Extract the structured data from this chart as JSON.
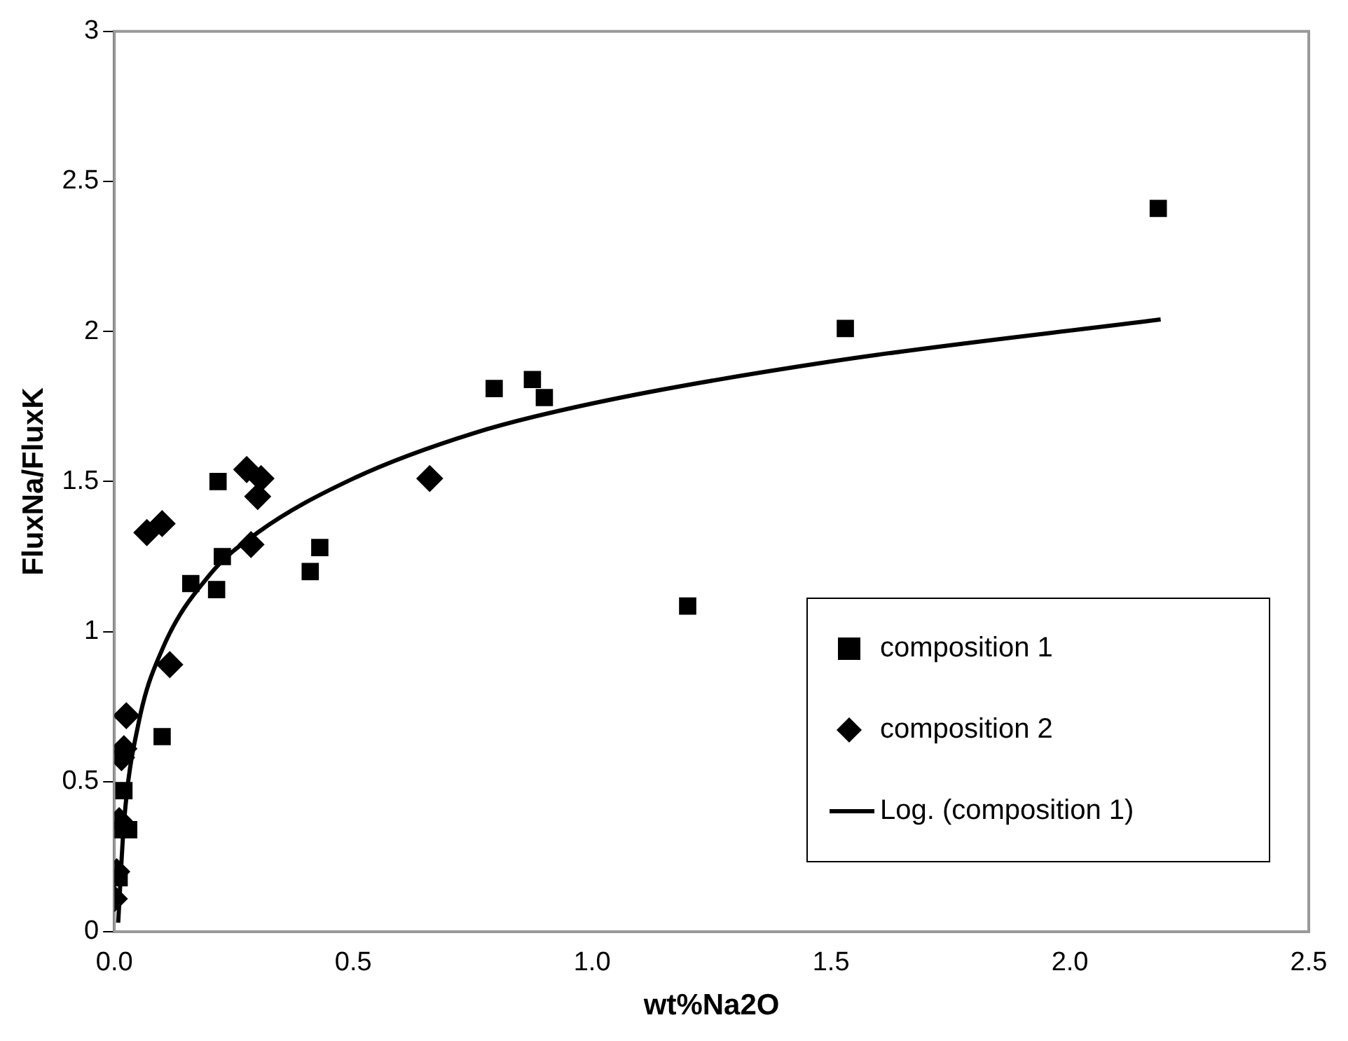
{
  "chart_data": {
    "type": "scatter",
    "xlabel": "wt%Na2O",
    "ylabel": "FluxNa/FluxK",
    "xlim": [
      0,
      2.5
    ],
    "xticks": [
      {
        "value": 0,
        "label": "0.0"
      },
      {
        "value": 0.5,
        "label": "0.5"
      },
      {
        "value": 1,
        "label": "1.0"
      },
      {
        "value": 1.5,
        "label": "1.5"
      },
      {
        "value": 2,
        "label": "2.0"
      },
      {
        "value": 2.5,
        "label": "2.5"
      }
    ],
    "ylim": [
      0,
      3
    ],
    "yticks": [
      0,
      0.5,
      1,
      1.5,
      2,
      2.5,
      3
    ],
    "grid": false,
    "legend": "bottom right",
    "series": [
      {
        "name": "composition 1",
        "marker": "square",
        "color": "#000000",
        "x": [
          0.005,
          0.03,
          0.02,
          0.01,
          0.1,
          0.217,
          0.226,
          0.16,
          0.214,
          0.41,
          0.43,
          0.795,
          0.875,
          0.9,
          1.2,
          1.53,
          2.185
        ],
        "values": [
          0.34,
          0.34,
          0.47,
          0.18,
          0.65,
          1.5,
          1.25,
          1.16,
          1.14,
          1.2,
          1.28,
          1.81,
          1.84,
          1.78,
          1.085,
          2.01,
          2.41
        ]
      },
      {
        "name": "composition 2",
        "marker": "diamond",
        "color": "#000000",
        "x": [
          0.0,
          0.005,
          0.01,
          0.015,
          0.02,
          0.025,
          0.116,
          0.068,
          0.1,
          0.286,
          0.277,
          0.307,
          0.3,
          0.66
        ],
        "values": [
          0.11,
          0.2,
          0.37,
          0.58,
          0.61,
          0.72,
          0.89,
          1.33,
          1.36,
          1.29,
          1.54,
          1.51,
          1.45,
          1.51
        ]
      },
      {
        "name": "Log. (composition 1)",
        "type": "line",
        "marker": "none",
        "line_style": "solid",
        "color": "#000000",
        "x": [
          0.008,
          0.02,
          0.05,
          0.1,
          0.2,
          0.3,
          0.5,
          0.75,
          1.0,
          1.5,
          2.19
        ],
        "values": [
          0.03,
          0.36,
          0.69,
          0.94,
          1.19,
          1.33,
          1.51,
          1.66,
          1.76,
          1.9,
          2.04
        ]
      }
    ]
  }
}
